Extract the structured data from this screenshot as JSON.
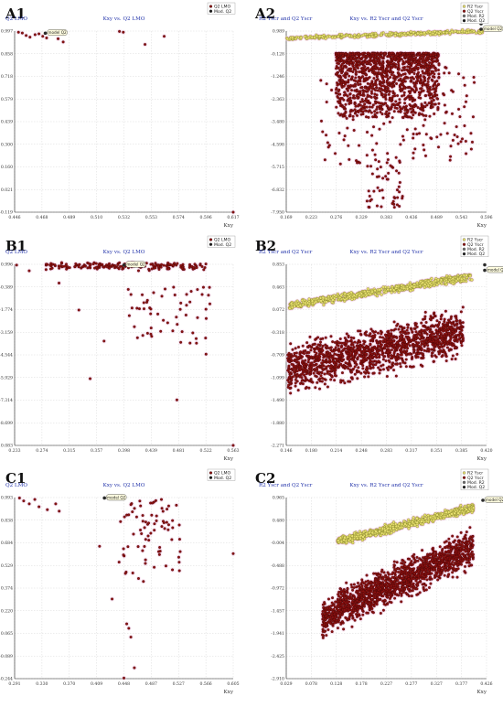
{
  "panels": [
    {
      "id": "A1",
      "title": "Kxy vs. Q2 LMO",
      "ylabel": "Q2 LMO",
      "xlabel": "Kxy",
      "xticks": [
        "0.446",
        "0.468",
        "0.489",
        "0.510",
        "0.532",
        "0.553",
        "0.574",
        "0.596",
        "0.617"
      ],
      "yticks": [
        "0.997",
        "0.858",
        "0.718",
        "0.579",
        "0.439",
        "0.300",
        "0.160",
        "0.021",
        "-0.119"
      ],
      "legend": [
        "Q2 LMO",
        "Mod. Q2"
      ],
      "model_label": "model Q2"
    },
    {
      "id": "A2",
      "title": "Kxy vs. R2 Yscr and Q2 Yscr",
      "ylabel": "R2 Yscr and Q2 Yscr",
      "xlabel": "Kxy",
      "xticks": [
        "0.169",
        "0.223",
        "0.276",
        "0.329",
        "0.383",
        "0.436",
        "0.489",
        "0.543",
        "0.596"
      ],
      "yticks": [
        "0.989",
        "-0.128",
        "-1.246",
        "-2.363",
        "-3.480",
        "-4.598",
        "-5.715",
        "-6.832",
        "-7.950"
      ],
      "legend": [
        "R2 Yscr",
        "Q2 Yscr",
        "Mod. R2",
        "Mod. Q2"
      ],
      "model_label": "model Q2"
    },
    {
      "id": "B1",
      "title": "Kxy vs. Q2 LMO",
      "ylabel": "Q2 LMO",
      "xlabel": "Kxy",
      "xticks": [
        "0.233",
        "0.274",
        "0.315",
        "0.357",
        "0.398",
        "0.439",
        "0.481",
        "0.522",
        "0.563"
      ],
      "yticks": [
        "0.996",
        "-0.389",
        "-1.774",
        "-3.159",
        "-4.544",
        "-5.929",
        "-7.314",
        "-8.699",
        "-10.083"
      ],
      "legend": [
        "Q2 LMO",
        "Mod. Q2"
      ],
      "model_label": "model Q2"
    },
    {
      "id": "B2",
      "title": "Kxy vs. R2 Yscr and Q2 Yscr",
      "ylabel": "R2 Yscr and Q2 Yscr",
      "xlabel": "Kxy",
      "xticks": [
        "0.146",
        "0.180",
        "0.214",
        "0.248",
        "0.283",
        "0.317",
        "0.351",
        "0.385",
        "0.420"
      ],
      "yticks": [
        "0.853",
        "0.463",
        "0.072",
        "-0.318",
        "-0.709",
        "-1.099",
        "-1.490",
        "-1.880",
        "-2.271"
      ],
      "legend": [
        "R2 Yscr",
        "Q2 Yscr",
        "Mod. R2",
        "Mod. Q2"
      ],
      "model_label": "model Q2"
    },
    {
      "id": "C1",
      "title": "Kxy vs. Q2 LMO",
      "ylabel": "Q2 LMO",
      "xlabel": "Kxy",
      "xticks": [
        "0.291",
        "0.330",
        "0.370",
        "0.409",
        "0.448",
        "0.487",
        "0.527",
        "0.566",
        "0.605"
      ],
      "yticks": [
        "0.993",
        "0.838",
        "0.684",
        "0.529",
        "0.374",
        "0.220",
        "0.065",
        "-0.089",
        "-0.244"
      ],
      "legend": [
        "Q2 LMO",
        "Mod. Q2"
      ],
      "model_label": "model Q2"
    },
    {
      "id": "C2",
      "title": "Kxy vs. R2 Yscr and Q2 Yscr",
      "ylabel": "R2 Yscr and Q2 Yscr",
      "xlabel": "Kxy",
      "xticks": [
        "0.029",
        "0.078",
        "0.128",
        "0.178",
        "0.227",
        "0.277",
        "0.327",
        "0.377",
        "0.426"
      ],
      "yticks": [
        "0.965",
        "0.480",
        "-0.004",
        "-0.488",
        "-0.972",
        "-1.457",
        "-1.941",
        "-2.425",
        "-2.910"
      ],
      "legend": [
        "R2 Yscr",
        "Q2 Yscr",
        "Mod. R2",
        "Mod. Q2"
      ],
      "model_label": "model Q2"
    }
  ],
  "colors": {
    "q2": "#8b1010",
    "q2_edge": "#3a0505",
    "r2": "#e8e070",
    "r2_edge": "#7a7a20",
    "halo": "#f4c8e4",
    "title": "#2233aa"
  },
  "chart_data": [
    {
      "panel": "A1",
      "type": "scatter",
      "xlim": [
        0.446,
        0.617
      ],
      "ylim": [
        -0.119,
        0.997
      ],
      "series": [
        {
          "name": "Q2 LMO",
          "points": [
            [
              0.449,
              0.99
            ],
            [
              0.452,
              0.985
            ],
            [
              0.455,
              0.97
            ],
            [
              0.458,
              0.96
            ],
            [
              0.462,
              0.975
            ],
            [
              0.465,
              0.98
            ],
            [
              0.468,
              0.965
            ],
            [
              0.471,
              0.955
            ],
            [
              0.476,
              0.99
            ],
            [
              0.48,
              0.95
            ],
            [
              0.484,
              0.93
            ],
            [
              0.528,
              0.995
            ],
            [
              0.531,
              0.99
            ],
            [
              0.548,
              0.915
            ],
            [
              0.563,
              0.965
            ],
            [
              0.617,
              -0.119
            ]
          ]
        },
        {
          "name": "Mod. Q2",
          "points": [
            [
              0.47,
              0.984
            ]
          ]
        }
      ]
    },
    {
      "panel": "A2",
      "type": "scatter",
      "xlim": [
        0.169,
        0.596
      ],
      "ylim": [
        -7.95,
        0.989
      ],
      "series": []
    },
    {
      "panel": "B1",
      "type": "scatter",
      "xlim": [
        0.233,
        0.563
      ],
      "ylim": [
        -10.083,
        0.996
      ],
      "series": []
    },
    {
      "panel": "B2",
      "type": "scatter",
      "xlim": [
        0.146,
        0.42
      ],
      "ylim": [
        -2.271,
        0.853
      ],
      "series": []
    },
    {
      "panel": "C1",
      "type": "scatter",
      "xlim": [
        0.291,
        0.605
      ],
      "ylim": [
        -0.244,
        0.993
      ],
      "series": []
    },
    {
      "panel": "C2",
      "type": "scatter",
      "xlim": [
        0.029,
        0.426
      ],
      "ylim": [
        -2.91,
        0.965
      ],
      "series": []
    }
  ]
}
